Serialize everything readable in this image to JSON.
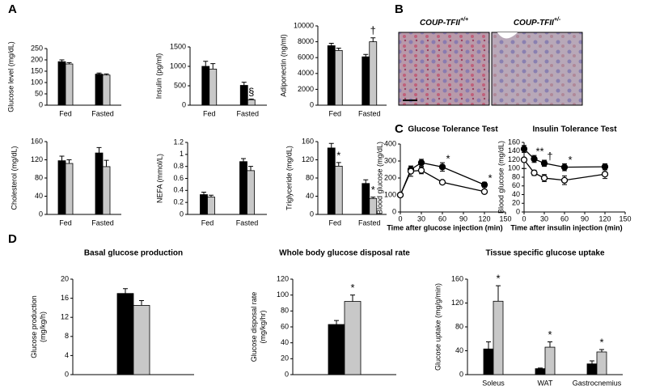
{
  "panel_labels": [
    "A",
    "B",
    "C",
    "D"
  ],
  "panel_b": {
    "labels": [
      {
        "text": "COUP-TFII",
        "superscript": "+/+"
      },
      {
        "text": "COUP-TFII",
        "superscript": "+/-"
      }
    ]
  },
  "chart_data": [
    {
      "type": "bar",
      "ylabel": [
        "Glucose level (mg/dL)"
      ],
      "categories": [
        "Fed",
        "Fasted"
      ],
      "ylim": [
        0,
        250
      ],
      "yticks": [
        0,
        50,
        100,
        150,
        200,
        250
      ],
      "series": [
        {
          "color": "#000000",
          "values": [
            192,
            137
          ],
          "errors": [
            8,
            5
          ]
        },
        {
          "color": "#c8c8c8",
          "values": [
            182,
            133
          ],
          "errors": [
            6,
            5
          ]
        }
      ]
    },
    {
      "type": "bar",
      "ylabel": [
        "Insulin (pg/ml)"
      ],
      "categories": [
        "Fed",
        "Fasted"
      ],
      "ylim": [
        0,
        1500
      ],
      "yticks": [
        0,
        500,
        1000,
        1500
      ],
      "series": [
        {
          "color": "#000000",
          "values": [
            1000,
            510
          ],
          "errors": [
            130,
            80
          ]
        },
        {
          "color": "#c8c8c8",
          "values": [
            930,
            140
          ],
          "errors": [
            140,
            20
          ],
          "annotations": [
            null,
            "§"
          ]
        }
      ]
    },
    {
      "type": "bar",
      "ylabel": [
        "Adiponectin (ng/ml)"
      ],
      "categories": [
        "Fed",
        "Fasted"
      ],
      "ylim": [
        0,
        10000
      ],
      "yticks": [
        0,
        2000,
        4000,
        6000,
        8000,
        10000
      ],
      "series": [
        {
          "color": "#000000",
          "values": [
            7500,
            6100
          ],
          "errors": [
            300,
            300
          ]
        },
        {
          "color": "#c8c8c8",
          "values": [
            6900,
            8000
          ],
          "errors": [
            300,
            500
          ],
          "annotations": [
            null,
            "†"
          ]
        }
      ]
    },
    {
      "type": "bar",
      "ylabel": [
        "Cholesterol (mg/dL)"
      ],
      "categories": [
        "Fed",
        "Fasted"
      ],
      "ylim": [
        0,
        160
      ],
      "yticks": [
        0,
        40,
        80,
        120,
        160
      ],
      "series": [
        {
          "color": "#000000",
          "values": [
            118,
            135
          ],
          "errors": [
            10,
            12
          ]
        },
        {
          "color": "#c8c8c8",
          "values": [
            112,
            105
          ],
          "errors": [
            8,
            14
          ]
        }
      ]
    },
    {
      "type": "bar",
      "ylabel": [
        "NEFA (mmol/L)"
      ],
      "categories": [
        "Fed",
        "Fasted"
      ],
      "ylim": [
        0,
        1.2
      ],
      "yticks": [
        0,
        0.2,
        0.4,
        0.6,
        0.8,
        1,
        1.2
      ],
      "series": [
        {
          "color": "#000000",
          "values": [
            0.33,
            0.88
          ],
          "errors": [
            0.04,
            0.05
          ]
        },
        {
          "color": "#c8c8c8",
          "values": [
            0.29,
            0.73
          ],
          "errors": [
            0.03,
            0.07
          ]
        }
      ]
    },
    {
      "type": "bar",
      "ylabel": [
        "Triglyceride (mg/dL)"
      ],
      "categories": [
        "Fed",
        "Fasted"
      ],
      "ylim": [
        0,
        160
      ],
      "yticks": [
        0,
        40,
        80,
        120,
        160
      ],
      "series": [
        {
          "color": "#000000",
          "values": [
            146,
            68
          ],
          "errors": [
            10,
            8
          ]
        },
        {
          "color": "#c8c8c8",
          "values": [
            106,
            35
          ],
          "errors": [
            8,
            3
          ],
          "annotations": [
            "*",
            "*"
          ]
        }
      ]
    },
    {
      "type": "line",
      "title": "Glucose Tolerance Test",
      "ylabel": [
        "Blood glucose (mg/dL)"
      ],
      "xlabel": "Time after glucose injection (min)",
      "x": [
        0,
        15,
        30,
        60,
        120
      ],
      "xlim": [
        0,
        150
      ],
      "xticks": [
        0,
        30,
        60,
        90,
        120,
        150
      ],
      "ylim": [
        0,
        400
      ],
      "yticks": [
        0,
        100,
        200,
        300,
        400
      ],
      "annotations": [
        null,
        null,
        null,
        "*",
        "*"
      ],
      "series": [
        {
          "color": "#000000",
          "marker_fill": "#000000",
          "values": [
            100,
            250,
            290,
            265,
            160
          ],
          "errors": [
            0,
            20,
            20,
            25,
            15
          ]
        },
        {
          "color": "#000000",
          "marker_fill": "#ffffff",
          "values": [
            100,
            240,
            245,
            175,
            120
          ],
          "errors": [
            0,
            30,
            20,
            10,
            10
          ]
        }
      ]
    },
    {
      "type": "line",
      "title": "Insulin Tolerance Test",
      "ylabel": [
        "Blood glucose (mg/dL)"
      ],
      "xlabel": "Time after insulin injection (min)",
      "x": [
        0,
        15,
        30,
        60,
        120
      ],
      "xlim": [
        0,
        150
      ],
      "xticks": [
        0,
        30,
        60,
        90,
        120,
        150
      ],
      "ylim": [
        0,
        160
      ],
      "yticks": [
        0,
        20,
        40,
        60,
        80,
        100,
        120,
        140,
        160
      ],
      "annotations": [
        null,
        "**",
        "†",
        "*",
        null
      ],
      "series": [
        {
          "color": "#000000",
          "marker_fill": "#000000",
          "values": [
            145,
            122,
            112,
            103,
            104
          ],
          "errors": [
            8,
            8,
            7,
            8,
            7
          ]
        },
        {
          "color": "#000000",
          "marker_fill": "#ffffff",
          "values": [
            120,
            90,
            78,
            73,
            87
          ],
          "errors": [
            20,
            6,
            8,
            10,
            10
          ]
        }
      ]
    },
    {
      "type": "bar",
      "title": "Basal glucose production",
      "ylabel": [
        "Glucose production",
        "(mg/kg/h)"
      ],
      "categories": [
        null
      ],
      "ylim": [
        0,
        20
      ],
      "yticks": [
        0,
        4,
        8,
        12,
        16,
        20
      ],
      "series": [
        {
          "color": "#000000",
          "values": [
            17
          ],
          "errors": [
            1
          ]
        },
        {
          "color": "#c8c8c8",
          "values": [
            14.5
          ],
          "errors": [
            1
          ]
        }
      ]
    },
    {
      "type": "bar",
      "title": "Whole body glucose disposal rate",
      "ylabel": [
        "Glucose disposal rate",
        "(mg/kg/hr)"
      ],
      "categories": [
        null
      ],
      "ylim": [
        0,
        120
      ],
      "yticks": [
        0,
        20,
        40,
        60,
        80,
        100,
        120
      ],
      "series": [
        {
          "color": "#000000",
          "values": [
            63
          ],
          "errors": [
            5
          ]
        },
        {
          "color": "#c8c8c8",
          "values": [
            92
          ],
          "errors": [
            8
          ],
          "annotations": [
            "*"
          ]
        }
      ]
    },
    {
      "type": "bar",
      "title": "Tissue specific glucose uptake",
      "ylabel": [
        "Glucose uptake (mg/g/min)"
      ],
      "categories": [
        "Soleus",
        "WAT",
        "Gastrocnemius"
      ],
      "ylim": [
        0,
        160
      ],
      "yticks": [
        0,
        40,
        80,
        120,
        160
      ],
      "series": [
        {
          "color": "#000000",
          "values": [
            43,
            10,
            18
          ],
          "errors": [
            12,
            1,
            5
          ]
        },
        {
          "color": "#c8c8c8",
          "values": [
            123,
            46,
            38
          ],
          "errors": [
            26,
            9,
            4
          ],
          "annotations": [
            "*",
            "*",
            "*"
          ]
        }
      ]
    }
  ]
}
